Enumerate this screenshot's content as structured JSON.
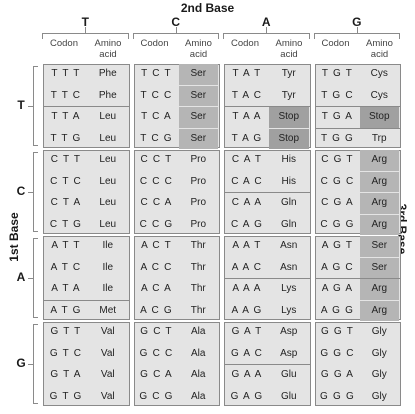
{
  "title_top": "2nd Base",
  "title_left": "1st Base",
  "title_right": "3rd Base",
  "col_headers": [
    {
      "base": "T",
      "codon": "Codon",
      "amino": "Amino acid"
    },
    {
      "base": "C",
      "codon": "Codon",
      "amino": "Amino acid"
    },
    {
      "base": "A",
      "codon": "Codon",
      "amino": "Amino acid"
    },
    {
      "base": "G",
      "codon": "Codon",
      "amino": "Amino acid"
    }
  ],
  "row_labels": [
    "T",
    "C",
    "A",
    "G"
  ],
  "rows": [
    [
      [
        "T T T",
        "Phe"
      ],
      [
        "T C T",
        "Ser"
      ],
      [
        "T A T",
        "Tyr"
      ],
      [
        "T G T",
        "Cys"
      ]
    ],
    [
      [
        "T T C",
        "Phe"
      ],
      [
        "T C C",
        "Ser"
      ],
      [
        "T A C",
        "Tyr"
      ],
      [
        "T G C",
        "Cys"
      ]
    ],
    [
      [
        "T T A",
        "Leu"
      ],
      [
        "T C A",
        "Ser"
      ],
      [
        "T A A",
        "Stop"
      ],
      [
        "T G A",
        "Stop"
      ]
    ],
    [
      [
        "T T G",
        "Leu"
      ],
      [
        "T C G",
        "Ser"
      ],
      [
        "T A G",
        "Stop"
      ],
      [
        "T G G",
        "Trp"
      ]
    ],
    [
      [
        "C T T",
        "Leu"
      ],
      [
        "C C T",
        "Pro"
      ],
      [
        "C A T",
        "His"
      ],
      [
        "C G T",
        "Arg"
      ]
    ],
    [
      [
        "C T C",
        "Leu"
      ],
      [
        "C C C",
        "Pro"
      ],
      [
        "C A C",
        "His"
      ],
      [
        "C G C",
        "Arg"
      ]
    ],
    [
      [
        "C T A",
        "Leu"
      ],
      [
        "C C A",
        "Pro"
      ],
      [
        "C A A",
        "Gln"
      ],
      [
        "C G A",
        "Arg"
      ]
    ],
    [
      [
        "C T G",
        "Leu"
      ],
      [
        "C C G",
        "Pro"
      ],
      [
        "C A G",
        "Gln"
      ],
      [
        "C G G",
        "Arg"
      ]
    ],
    [
      [
        "A T T",
        "Ile"
      ],
      [
        "A C T",
        "Thr"
      ],
      [
        "A A T",
        "Asn"
      ],
      [
        "A G T",
        "Ser"
      ]
    ],
    [
      [
        "A T C",
        "Ile"
      ],
      [
        "A C C",
        "Thr"
      ],
      [
        "A A C",
        "Asn"
      ],
      [
        "A G C",
        "Ser"
      ]
    ],
    [
      [
        "A T A",
        "Ile"
      ],
      [
        "A C A",
        "Thr"
      ],
      [
        "A A A",
        "Lys"
      ],
      [
        "A G A",
        "Arg"
      ]
    ],
    [
      [
        "A T G",
        "Met"
      ],
      [
        "A C G",
        "Thr"
      ],
      [
        "A A G",
        "Lys"
      ],
      [
        "A G G",
        "Arg"
      ]
    ],
    [
      [
        "G T T",
        "Val"
      ],
      [
        "G C T",
        "Ala"
      ],
      [
        "G A T",
        "Asp"
      ],
      [
        "G G T",
        "Gly"
      ]
    ],
    [
      [
        "G T C",
        "Val"
      ],
      [
        "G C C",
        "Ala"
      ],
      [
        "G A C",
        "Asp"
      ],
      [
        "G G C",
        "Gly"
      ]
    ],
    [
      [
        "G T A",
        "Val"
      ],
      [
        "G C A",
        "Ala"
      ],
      [
        "G A A",
        "Glu"
      ],
      [
        "G G A",
        "Gly"
      ]
    ],
    [
      [
        "G T G",
        "Val"
      ],
      [
        "G C G",
        "Ala"
      ],
      [
        "G A G",
        "Glu"
      ],
      [
        "G G G",
        "Gly"
      ]
    ]
  ],
  "colors": {
    "cell_bg": "#e4e4e4",
    "shade": "#b5b5b5",
    "stop_shade": "#a0a0a0",
    "border": "#8a8a8a"
  }
}
